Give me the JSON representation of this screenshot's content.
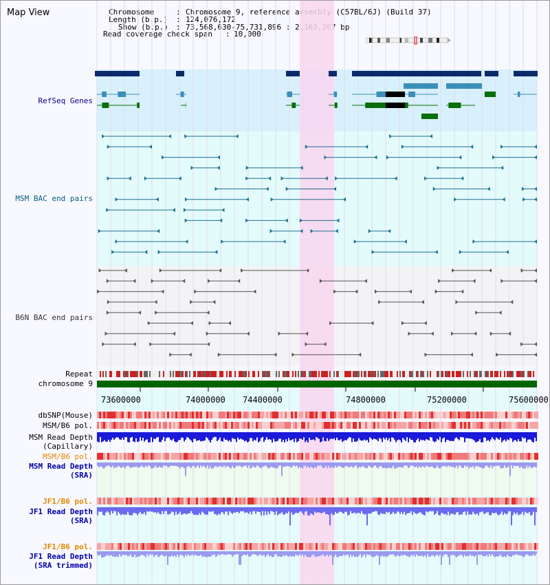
{
  "window": {
    "title": "Map View"
  },
  "info": {
    "chromosome_key": "Chromosome",
    "chromosome_value": "Chromosome 9, reference assembly (C57BL/6J) (Build 37)",
    "length_key": "Length (b.p.)",
    "length_value": "124,076,172",
    "show_key": "Show (b.p.)",
    "show_value": "73,568,630-75,731,896 : 2,163,267 bp",
    "coverage_key": "Read coverage check span",
    "coverage_value": "10,000"
  },
  "tracks": {
    "refseq": {
      "label": "RefSeq Genes",
      "color": "#00008b"
    },
    "msm_bac": {
      "label": "MSM BAC end pairs",
      "color": "#005f7f"
    },
    "b6n_bac": {
      "label": "B6N BAC end pairs",
      "color": "#333333"
    },
    "repeat": {
      "label": "Repeat"
    },
    "chromosome": {
      "label": "chromosome 9"
    },
    "dbsnp": {
      "label": "dbSNP(Mouse)"
    },
    "msm_b6_pol_1": {
      "label": "MSM/B6 pol."
    },
    "msm_depth_cap": {
      "label": "MSM Read Depth",
      "sub": "(Capillary)"
    },
    "msm_b6_pol_2": {
      "label": "MSM/B6 pol.",
      "color": "#e08a00"
    },
    "msm_depth_sra": {
      "label": "MSM Read Depth",
      "sub": "(SRA)",
      "color": "#0000aa"
    },
    "jf1_b6_pol_1": {
      "label": "JF1/B6 pol.",
      "color": "#e08a00"
    },
    "jf1_depth_sra": {
      "label": "JF1 Read Depth",
      "sub": "(SRA)",
      "color": "#0000aa"
    },
    "jf1_b6_pol_2": {
      "label": "JF1/B6 pol.",
      "color": "#e08a00"
    },
    "jf1_depth_trim": {
      "label": "JF1 Read Depth",
      "sub": "(SRA trimmed)",
      "color": "#0000aa"
    }
  },
  "axis": {
    "ticks": [
      "73600000",
      "74000000",
      "74400000",
      "74800000",
      "75200000",
      "75600000"
    ]
  },
  "colors": {
    "highlight": "#f9d6f0",
    "refseq_bg": "#d8f0fb",
    "msm_bg": "#e3fbfb",
    "b6n_bg": "#f3f3f6",
    "sra_bg": "#eefbee",
    "jf1_bg": "#e6fbfb",
    "gene_dark": "#0a2a6a",
    "gene_mid": "#3b8fb8",
    "gene_green": "#0a6e0a",
    "chrom": "#006400"
  }
}
